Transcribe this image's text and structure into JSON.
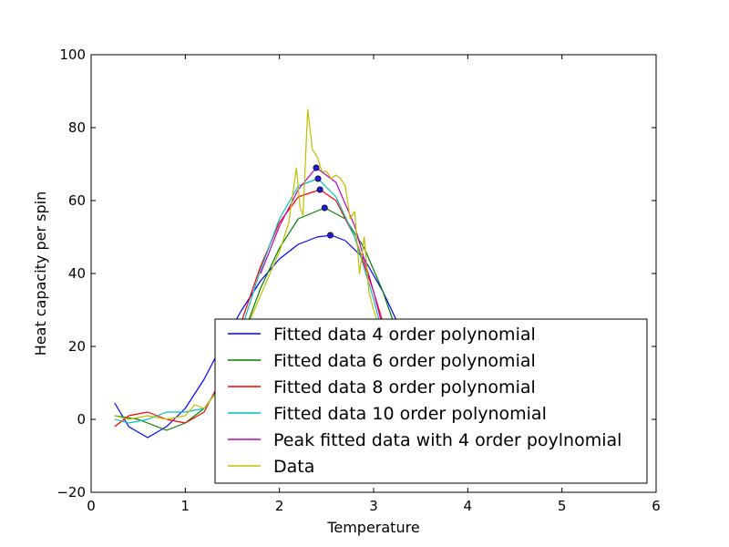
{
  "chart_data": {
    "type": "line",
    "title": "",
    "xlabel": "Temperature",
    "ylabel": "Heat capacity per spin",
    "xlim": [
      0,
      6
    ],
    "ylim": [
      -20,
      100
    ],
    "xticks": [
      0,
      1,
      2,
      3,
      4,
      5,
      6
    ],
    "yticks": [
      -20,
      0,
      20,
      40,
      60,
      80,
      100
    ],
    "xtick_labels": [
      "0",
      "1",
      "2",
      "3",
      "4",
      "5",
      "6"
    ],
    "ytick_labels": [
      "−20",
      "0",
      "20",
      "40",
      "60",
      "80",
      "100"
    ],
    "grid": false,
    "legend_position": "lower-right",
    "series": [
      {
        "name": "Fitted data 4 order polynomial",
        "color": "#0000ff",
        "x": [
          0.25,
          0.4,
          0.6,
          0.8,
          1.0,
          1.2,
          1.4,
          1.6,
          1.8,
          2.0,
          2.2,
          2.4,
          2.55,
          2.7,
          2.9,
          3.1,
          3.3,
          3.5,
          3.65
        ],
        "y": [
          4.5,
          -2,
          -5,
          -2,
          3,
          11,
          21,
          30,
          38,
          44,
          48,
          50,
          50.5,
          49,
          44,
          35,
          24,
          12,
          2
        ]
      },
      {
        "name": "Fitted data 6 order polynomial",
        "color": "#008000",
        "x": [
          0.25,
          0.5,
          0.8,
          1.0,
          1.2,
          1.4,
          1.6,
          1.8,
          2.0,
          2.2,
          2.48,
          2.7,
          2.9,
          3.1,
          3.3,
          3.45
        ],
        "y": [
          1,
          0,
          -3,
          -1,
          3,
          10,
          22,
          36,
          47,
          55,
          58,
          55,
          47,
          35,
          20,
          8
        ]
      },
      {
        "name": "Fitted data 8 order polynomial",
        "color": "#ff0000",
        "x": [
          0.25,
          0.4,
          0.6,
          0.8,
          1.0,
          1.2,
          1.4,
          1.6,
          1.8,
          2.0,
          2.2,
          2.43,
          2.6,
          2.8,
          3.0,
          3.2,
          3.35
        ],
        "y": [
          -2,
          1,
          2,
          0,
          -1,
          2,
          12,
          27,
          42,
          54,
          61,
          63,
          60,
          50,
          35,
          18,
          5
        ]
      },
      {
        "name": "Fitted data 10 order polynomial",
        "color": "#00bfbf",
        "x": [
          0.25,
          0.4,
          0.6,
          0.8,
          1.0,
          1.2,
          1.4,
          1.6,
          1.8,
          2.0,
          2.2,
          2.41,
          2.6,
          2.8,
          3.0,
          3.15,
          3.25
        ],
        "y": [
          0,
          -1,
          0,
          2,
          2,
          3,
          10,
          25,
          41,
          55,
          64,
          66,
          61,
          50,
          33,
          18,
          6
        ]
      },
      {
        "name": "Peak fitted data with 4 order poylnomial",
        "color": "#bf00bf",
        "x": [
          1.8,
          2.0,
          2.2,
          2.39,
          2.6,
          2.8,
          3.0,
          3.15
        ],
        "y": [
          40,
          53,
          63,
          69,
          65,
          53,
          35,
          20
        ]
      },
      {
        "name": "Data",
        "color": "#bfbf00",
        "x": [
          0.25,
          0.4,
          0.6,
          0.8,
          1.0,
          1.1,
          1.2,
          1.35,
          1.5,
          1.7,
          1.9,
          2.0,
          2.1,
          2.18,
          2.22,
          2.25,
          2.3,
          2.35,
          2.4,
          2.45,
          2.5,
          2.55,
          2.6,
          2.65,
          2.7,
          2.75,
          2.8,
          2.85,
          2.9,
          2.95,
          3.0,
          3.1,
          3.2
        ],
        "y": [
          1,
          0,
          1,
          0,
          1,
          4,
          3,
          8,
          15,
          28,
          40,
          46,
          54,
          69,
          58,
          56,
          85,
          74,
          72,
          68,
          68,
          66,
          67,
          66,
          64,
          55,
          57,
          40,
          50,
          35,
          30,
          22,
          12
        ]
      }
    ],
    "peak_markers": {
      "color": "#1f1fcf",
      "x": [
        2.54,
        2.48,
        2.43,
        2.41,
        2.39
      ],
      "y": [
        50.5,
        58,
        63,
        66,
        69
      ]
    }
  }
}
